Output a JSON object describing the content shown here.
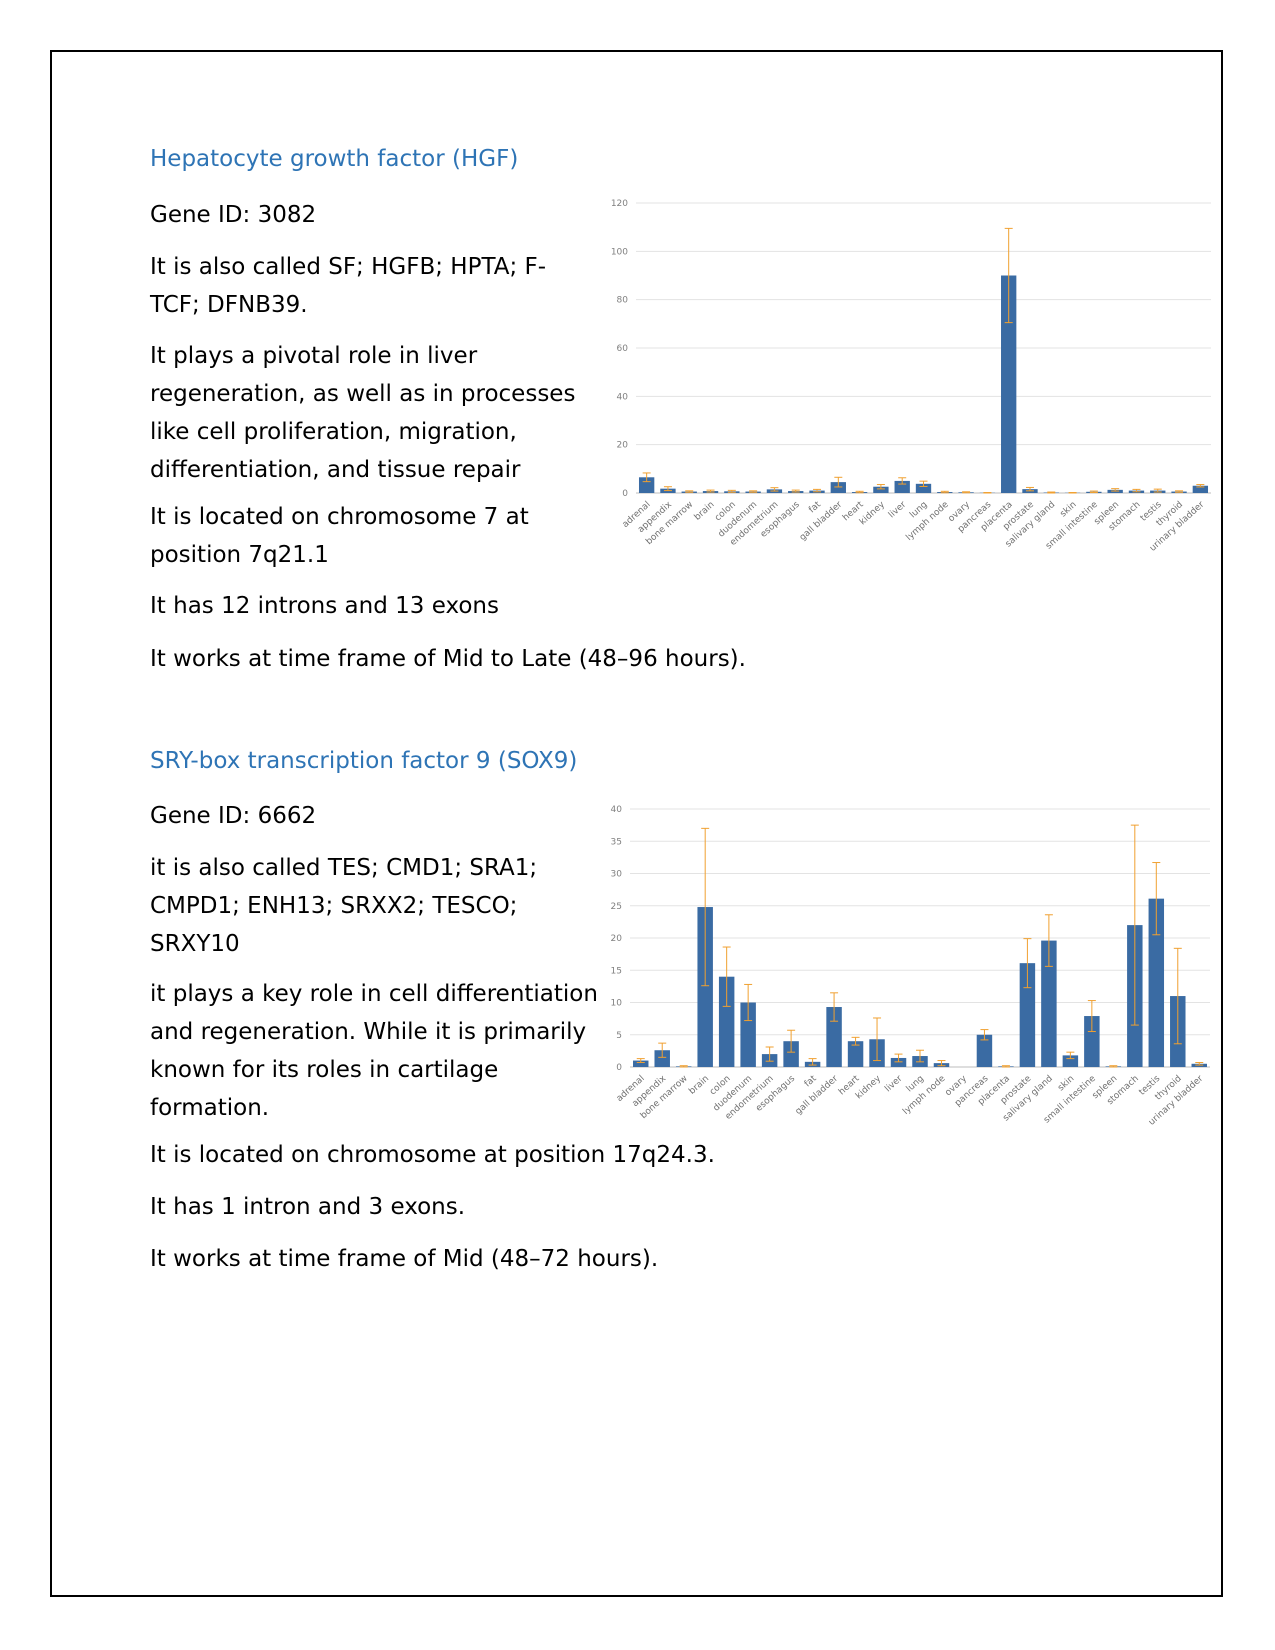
{
  "sections": [
    {
      "heading": "Hepatocyte growth factor (HGF)",
      "gene_id": "Gene ID: 3082",
      "aliases": "It is also called SF; HGFB; HPTA; F-TCF; DFNB39.",
      "role": "It plays a pivotal role in liver regeneration, as well as in processes like cell proliferation, migration, differentiation, and tissue repair",
      "location": "It is located on chromosome 7 at position 7q21.1",
      "structure": "It has 12 introns and 13 exons",
      "timeframe": "It works at time frame of Mid to Late (48–96 hours)."
    },
    {
      "heading": "SRY-box transcription factor 9 (SOX9)",
      "gene_id": "Gene ID: 6662",
      "aliases": "it is also called TES; CMD1; SRA1; CMPD1; ENH13; SRXX2; TESCO; SRXY10",
      "role": "it plays a key role in cell differentiation and regeneration. While it is primarily known for its roles in cartilage formation.",
      "location": "It is located on chromosome at position 17q24.3.",
      "structure": "It has 1 intron and 3 exons.",
      "timeframe": "It works at time frame of Mid (48–72 hours)."
    }
  ],
  "chart_data": [
    {
      "type": "bar",
      "title": "",
      "xlabel": "",
      "ylabel": "",
      "ylim": [
        0,
        120
      ],
      "yticks": [
        0,
        20,
        40,
        60,
        80,
        100,
        120
      ],
      "grid": true,
      "bar_color": "#3a6ba3",
      "error_color": "#f0a030",
      "categories": [
        "adrenal",
        "appendix",
        "bone marrow",
        "brain",
        "colon",
        "duodenum",
        "endometrium",
        "esophagus",
        "fat",
        "gall bladder",
        "heart",
        "kidney",
        "liver",
        "lung",
        "lymph node",
        "ovary",
        "pancreas",
        "placenta",
        "prostate",
        "salivary gland",
        "skin",
        "small intestine",
        "spleen",
        "stomach",
        "testis",
        "thyroid",
        "urinary bladder"
      ],
      "values": [
        6.5,
        1.8,
        0.6,
        0.8,
        0.7,
        0.6,
        1.5,
        0.8,
        1.0,
        4.5,
        0.4,
        2.6,
        5.0,
        3.8,
        0.4,
        0.3,
        0.1,
        90,
        1.6,
        0.2,
        0.1,
        0.5,
        1.3,
        1.0,
        1.0,
        0.6,
        3.0
      ],
      "errors": [
        1.8,
        0.8,
        0.3,
        0.4,
        0.4,
        0.3,
        0.7,
        0.4,
        0.5,
        2.0,
        0.3,
        0.9,
        1.3,
        1.1,
        0.3,
        0.2,
        0.1,
        19.5,
        0.7,
        0.2,
        0.1,
        0.3,
        0.5,
        0.5,
        0.6,
        0.3,
        0.5
      ]
    },
    {
      "type": "bar",
      "title": "",
      "xlabel": "",
      "ylabel": "",
      "ylim": [
        0,
        40
      ],
      "yticks": [
        0,
        5,
        10,
        15,
        20,
        25,
        30,
        35,
        40
      ],
      "grid": true,
      "bar_color": "#3a6ba3",
      "error_color": "#f0a030",
      "categories": [
        "adrenal",
        "appendix",
        "bone marrow",
        "brain",
        "colon",
        "duodenum",
        "endometrium",
        "esophagus",
        "fat",
        "gall bladder",
        "heart",
        "kidney",
        "liver",
        "lung",
        "lymph node",
        "ovary",
        "pancreas",
        "placenta",
        "prostate",
        "salivary gland",
        "skin",
        "small intestine",
        "spleen",
        "stomach",
        "testis",
        "thyroid",
        "urinary bladder"
      ],
      "values": [
        1.0,
        2.6,
        0.1,
        24.8,
        14.0,
        10.0,
        2.0,
        4.0,
        0.8,
        9.3,
        4.0,
        4.3,
        1.4,
        1.7,
        0.6,
        0.0,
        5.0,
        0.1,
        16.1,
        19.6,
        1.8,
        7.9,
        0.1,
        22.0,
        26.1,
        11.0,
        0.5
      ],
      "errors": [
        0.3,
        1.1,
        0.1,
        12.2,
        4.6,
        2.8,
        1.1,
        1.7,
        0.5,
        2.2,
        0.6,
        3.3,
        0.6,
        0.9,
        0.4,
        0.0,
        0.8,
        0.1,
        3.8,
        4.0,
        0.5,
        2.4,
        0.1,
        15.5,
        5.6,
        7.4,
        0.2
      ]
    }
  ]
}
